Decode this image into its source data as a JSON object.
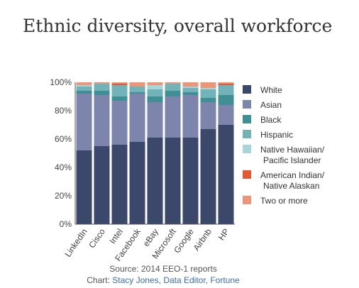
{
  "chart_data": {
    "type": "bar",
    "stacked": true,
    "title": "Ethnic diversity, overall workforce",
    "categories": [
      "LinkedIn",
      "Cisco",
      "Intel",
      "Facebook",
      "eBay",
      "Microsoft",
      "Google",
      "Airbnb",
      "HP"
    ],
    "ylim": [
      0,
      100
    ],
    "yticks": [
      "0%",
      "20%",
      "40%",
      "60%",
      "80%",
      "100%"
    ],
    "legend_position": "right",
    "grid": false,
    "series": [
      {
        "name": "White",
        "color": "#3b476b",
        "values": [
          52,
          55,
          56,
          58,
          61,
          61,
          61,
          67,
          70
        ]
      },
      {
        "name": "Asian",
        "color": "#7d85ac",
        "values": [
          40,
          36,
          31,
          34,
          25,
          29,
          30,
          19,
          14
        ]
      },
      {
        "name": "Black",
        "color": "#3f8f94",
        "values": [
          2,
          3,
          3,
          1,
          4,
          4,
          2,
          3,
          7
        ]
      },
      {
        "name": "Hispanic",
        "color": "#72b3b9",
        "values": [
          3,
          5,
          8,
          4,
          5,
          5,
          3,
          6,
          7
        ]
      },
      {
        "name": "Native Hawaiian/\nPacific Islander",
        "color": "#a9d4d8",
        "values": [
          1,
          0,
          0,
          0,
          3,
          0,
          1,
          1,
          0
        ]
      },
      {
        "name": "American Indian/\nNative Alaskan",
        "color": "#e05a35",
        "values": [
          0,
          0,
          1,
          0,
          0,
          0,
          0,
          0,
          1
        ]
      },
      {
        "name": "Two or more",
        "color": "#e9967a",
        "values": [
          2,
          1,
          1,
          3,
          2,
          1,
          3,
          4,
          1
        ]
      }
    ]
  },
  "source": "Source: 2014 EEO-1 reports",
  "credit_prefix": "Chart: ",
  "credit_author": "Stacy Jones, Data Editor, Fortune"
}
